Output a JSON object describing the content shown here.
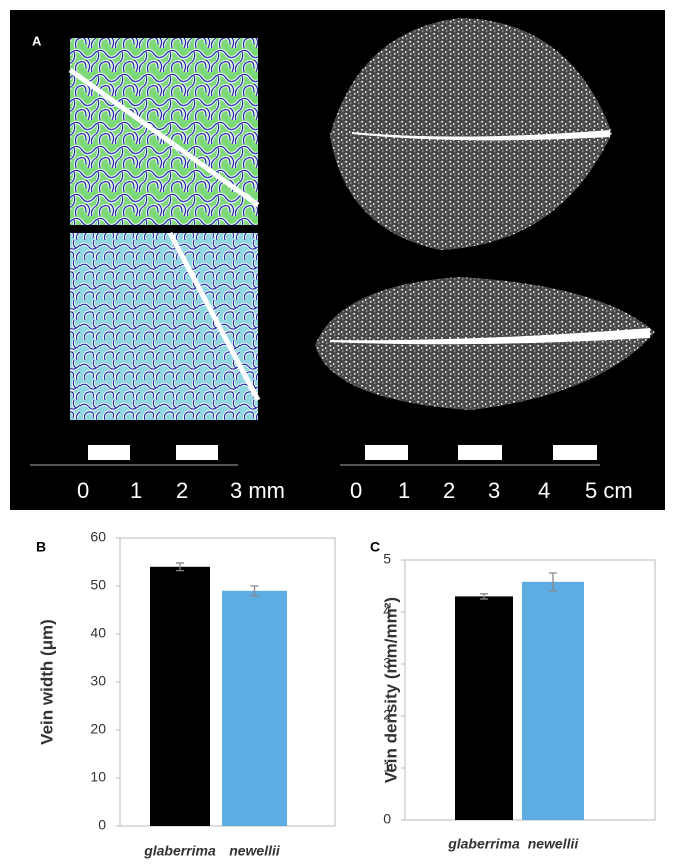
{
  "panel_a": {
    "label": "A",
    "scale_mm": [
      "0",
      "1",
      "2",
      "3 mm"
    ],
    "scale_cm": [
      "0",
      "1",
      "2",
      "3",
      "4",
      "5 cm"
    ]
  },
  "chart_data": [
    {
      "type": "bar",
      "panel": "B",
      "ylabel": "Vein width (μm)",
      "categories": [
        "glaberrima",
        "newellii"
      ],
      "values": [
        54,
        49
      ],
      "errors": [
        0.8,
        1.0
      ],
      "colors": [
        "#000000",
        "#5dade2"
      ],
      "ylim": [
        0,
        60
      ],
      "yticks": [
        0,
        10,
        20,
        30,
        40,
        50,
        60
      ]
    },
    {
      "type": "bar",
      "panel": "C",
      "ylabel": "Vein density (mm/mm²)",
      "categories": [
        "glaberrima",
        "newellii"
      ],
      "values": [
        4.3,
        4.58
      ],
      "errors": [
        0.05,
        0.17
      ],
      "colors": [
        "#000000",
        "#5dade2"
      ],
      "ylim": [
        0,
        5
      ],
      "yticks": [
        0,
        1,
        2,
        3,
        4,
        5
      ]
    }
  ]
}
